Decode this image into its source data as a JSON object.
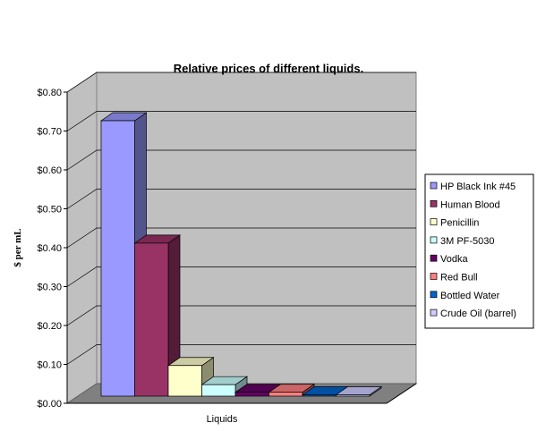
{
  "chart_data": {
    "type": "bar",
    "title": "Relative prices of different liquids.",
    "xlabel": "Liquids",
    "ylabel": "$ per mL",
    "ylim": [
      0,
      0.8
    ],
    "yticks": [
      "$0.00",
      "$0.10",
      "$0.20",
      "$0.30",
      "$0.40",
      "$0.50",
      "$0.60",
      "$0.70",
      "$0.80"
    ],
    "grid": true,
    "legend_position": "right",
    "series": [
      {
        "name": "HP Black Ink #45",
        "value": 0.72,
        "color": "#9999ff"
      },
      {
        "name": "Human Blood",
        "value": 0.4,
        "color": "#993366"
      },
      {
        "name": "Penicillin",
        "value": 0.08,
        "color": "#ffffcc"
      },
      {
        "name": "3M PF-5030",
        "value": 0.03,
        "color": "#ccffff"
      },
      {
        "name": "Vodka",
        "value": 0.01,
        "color": "#660066"
      },
      {
        "name": "Red Bull",
        "value": 0.01,
        "color": "#ff8080"
      },
      {
        "name": "Bottled Water",
        "value": 0.002,
        "color": "#0066cc"
      },
      {
        "name": "Crude Oil (barrel)",
        "value": 0.001,
        "color": "#ccccff"
      }
    ]
  }
}
